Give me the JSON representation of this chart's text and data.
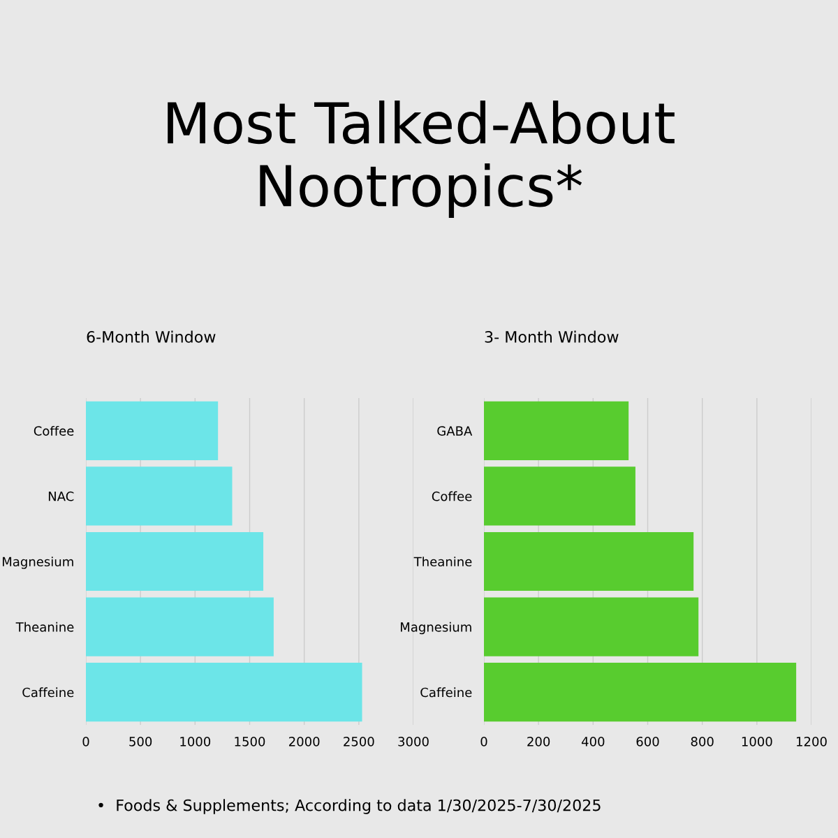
{
  "chart_data": [
    {
      "type": "bar",
      "orientation": "horizontal",
      "title": "Most Talked-About Nootropics*",
      "subtitle": "6-Month Window",
      "categories": [
        "Coffee",
        "NAC",
        "Magnesium",
        "Theanine",
        "Caffeine"
      ],
      "values": [
        1210,
        1340,
        1625,
        1720,
        2530
      ],
      "color": "#6ce5e8",
      "xlim": [
        0,
        3000
      ],
      "xticks": [
        0,
        500,
        1000,
        1500,
        2000,
        2500,
        3000
      ],
      "grid": "x",
      "legend": false
    },
    {
      "type": "bar",
      "orientation": "horizontal",
      "subtitle": "3- Month Window",
      "categories": [
        "GABA",
        "Coffee",
        "Theanine",
        "Magnesium",
        "Caffeine"
      ],
      "values": [
        530,
        555,
        768,
        786,
        1144
      ],
      "color": "#58cc2f",
      "xlim": [
        0,
        1200
      ],
      "xticks": [
        0,
        200,
        400,
        600,
        800,
        1000,
        1200
      ],
      "grid": "x",
      "legend": false,
      "annotations": [
        "•  Foods & Supplements; According to data 1/30/2025-7/30/2025"
      ]
    }
  ]
}
